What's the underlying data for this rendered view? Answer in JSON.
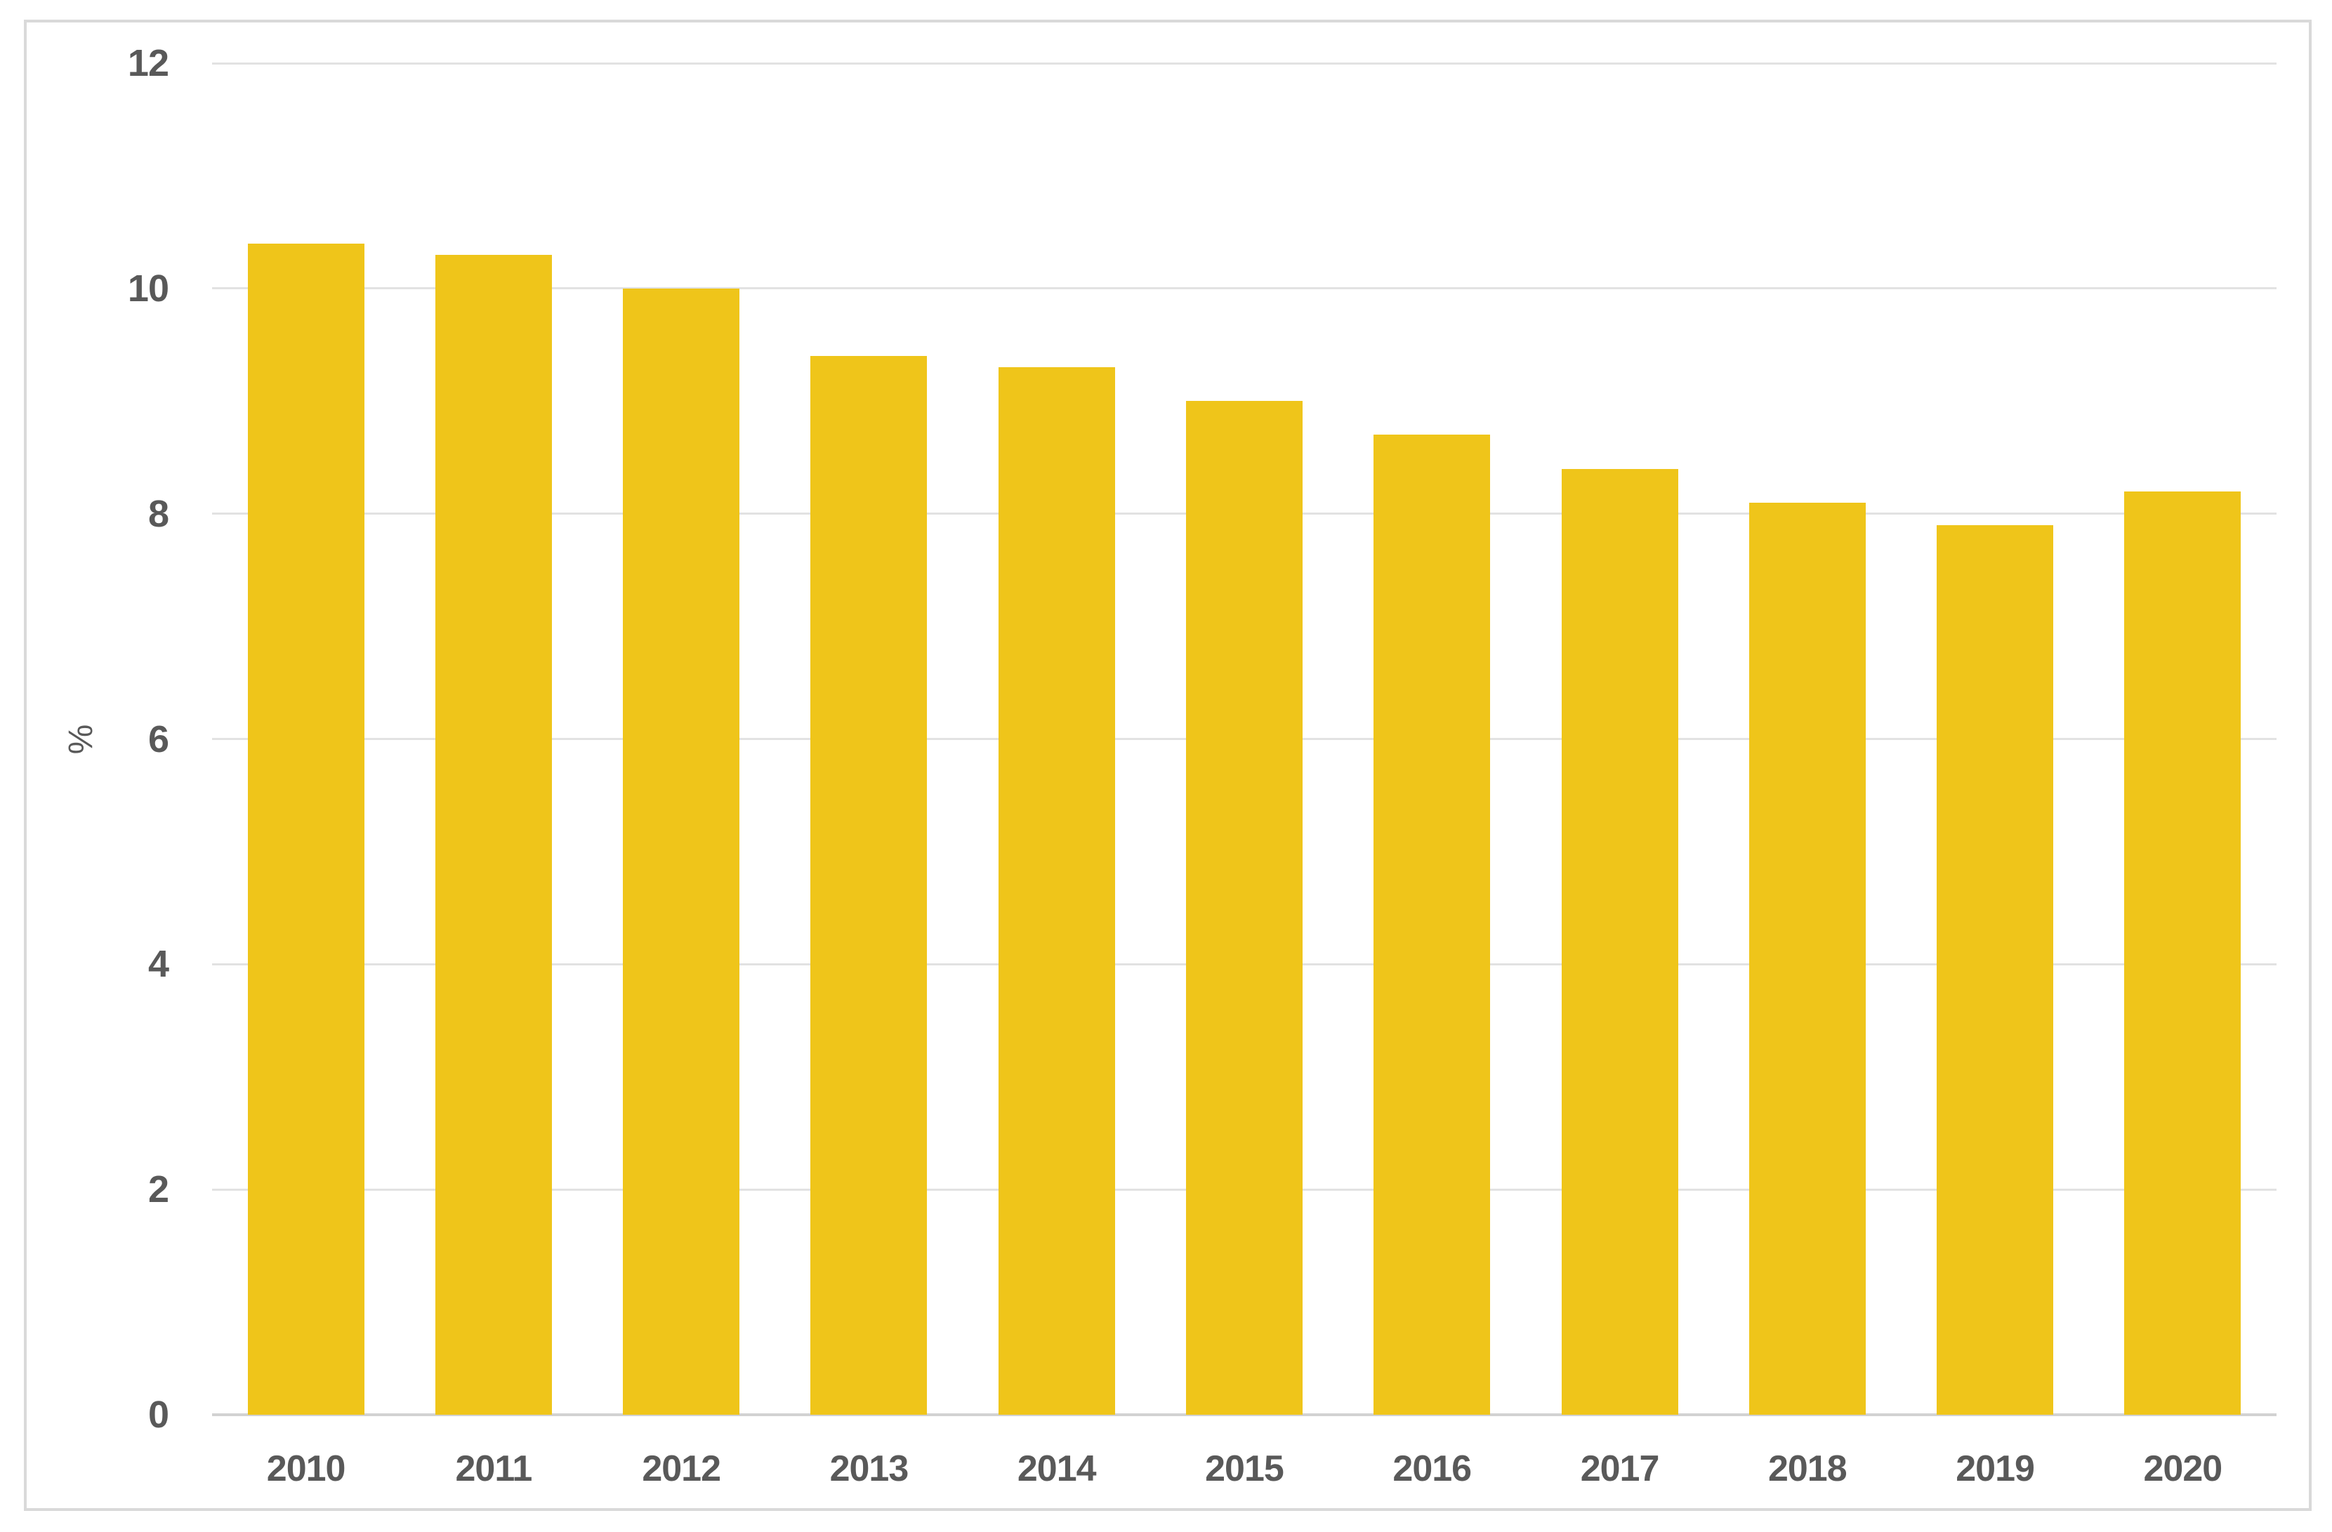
{
  "chart_data": {
    "type": "bar",
    "title": "",
    "xlabel": "",
    "ylabel": "%",
    "categories": [
      "2010",
      "2011",
      "2012",
      "2013",
      "2014",
      "2015",
      "2016",
      "2017",
      "2018",
      "2019",
      "2020"
    ],
    "values": [
      10.4,
      10.3,
      10.0,
      9.4,
      9.3,
      9.0,
      8.7,
      8.4,
      8.1,
      7.9,
      8.2
    ],
    "ylim": [
      0,
      12
    ],
    "yticks": [
      0,
      2,
      4,
      6,
      8,
      10,
      12
    ],
    "grid": true,
    "legend": false,
    "colors": {
      "bar": "#EFC51A",
      "axis_label": "#595959",
      "gridline": "#E2E2E2",
      "baseline": "#D2D2D2",
      "frame_border": "#D9D9D9"
    }
  }
}
